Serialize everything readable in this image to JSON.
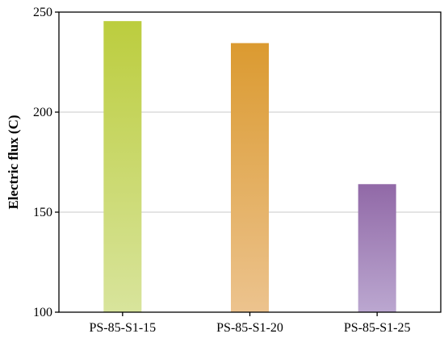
{
  "chart_data": {
    "type": "bar",
    "categories": [
      "PS-85-S1-15",
      "PS-85-S1-20",
      "PS-85-S1-25"
    ],
    "values": [
      245.5,
      234.5,
      164
    ],
    "xlabel": "",
    "ylabel": "Electric flux (C)",
    "ylim": [
      100,
      250
    ],
    "yticks": [
      100,
      150,
      200,
      250
    ],
    "grid": true,
    "bar_colors": [
      {
        "top": "#bccd3e",
        "bottom": "#d8e49c"
      },
      {
        "top": "#db9a30",
        "bottom": "#ecc38e"
      },
      {
        "top": "#9169a7",
        "bottom": "#bba7d0"
      }
    ],
    "gridline_color": "#c8c8c8",
    "axis_color": "#000000"
  }
}
